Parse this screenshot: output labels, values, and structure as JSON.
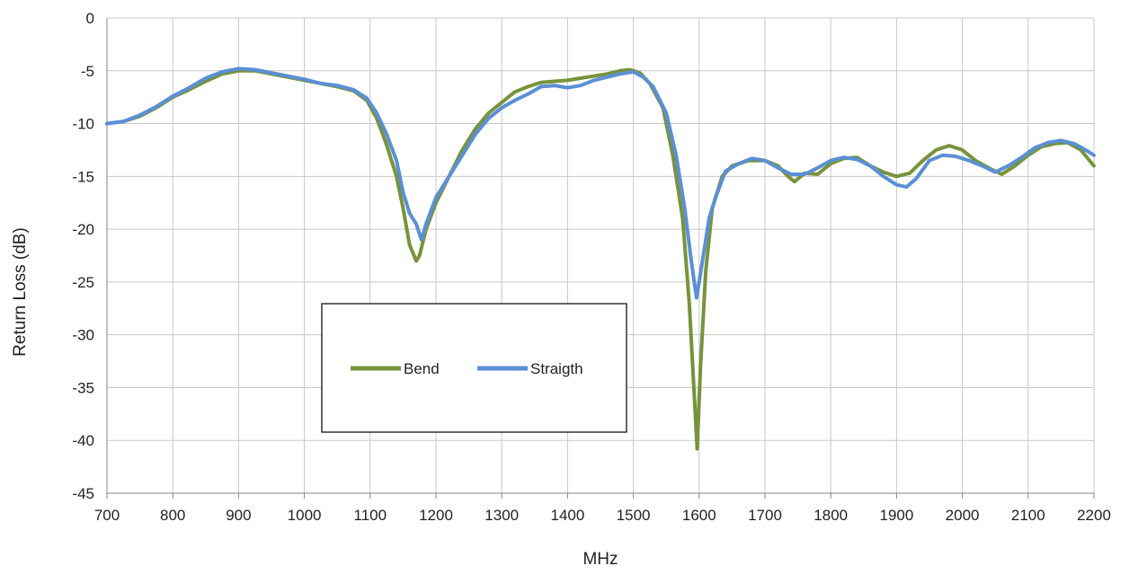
{
  "chart_data": {
    "type": "line",
    "title": "",
    "xlabel": "MHz",
    "ylabel": "Return Loss (dB)",
    "xlim": [
      700,
      2200
    ],
    "ylim": [
      -45,
      0
    ],
    "xticks": [
      700,
      800,
      900,
      1000,
      1100,
      1200,
      1300,
      1400,
      1500,
      1600,
      1700,
      1800,
      1900,
      2000,
      2100,
      2200
    ],
    "yticks": [
      0,
      -5,
      -10,
      -15,
      -20,
      -25,
      -30,
      -35,
      -40,
      -45
    ],
    "grid": true,
    "legend_position": "center-left",
    "series": [
      {
        "name": "Bend",
        "color": "#77933C",
        "points": [
          [
            700,
            -10
          ],
          [
            725,
            -9.8
          ],
          [
            750,
            -9.3
          ],
          [
            775,
            -8.5
          ],
          [
            800,
            -7.5
          ],
          [
            825,
            -6.8
          ],
          [
            850,
            -6
          ],
          [
            875,
            -5.3
          ],
          [
            900,
            -5
          ],
          [
            925,
            -5
          ],
          [
            950,
            -5.3
          ],
          [
            975,
            -5.6
          ],
          [
            1000,
            -5.9
          ],
          [
            1025,
            -6.2
          ],
          [
            1050,
            -6.5
          ],
          [
            1075,
            -6.9
          ],
          [
            1095,
            -7.8
          ],
          [
            1110,
            -9.5
          ],
          [
            1125,
            -12
          ],
          [
            1140,
            -15
          ],
          [
            1150,
            -18
          ],
          [
            1160,
            -21.5
          ],
          [
            1170,
            -23
          ],
          [
            1175,
            -22.5
          ],
          [
            1185,
            -20
          ],
          [
            1200,
            -17.5
          ],
          [
            1220,
            -15
          ],
          [
            1240,
            -12.5
          ],
          [
            1260,
            -10.5
          ],
          [
            1280,
            -9
          ],
          [
            1300,
            -8
          ],
          [
            1320,
            -7
          ],
          [
            1340,
            -6.5
          ],
          [
            1360,
            -6.1
          ],
          [
            1380,
            -6
          ],
          [
            1400,
            -5.9
          ],
          [
            1420,
            -5.7
          ],
          [
            1440,
            -5.5
          ],
          [
            1460,
            -5.3
          ],
          [
            1480,
            -5
          ],
          [
            1495,
            -4.9
          ],
          [
            1510,
            -5.2
          ],
          [
            1525,
            -6.2
          ],
          [
            1545,
            -8.5
          ],
          [
            1560,
            -13
          ],
          [
            1575,
            -19
          ],
          [
            1585,
            -27
          ],
          [
            1592,
            -35
          ],
          [
            1597,
            -40.8
          ],
          [
            1602,
            -33
          ],
          [
            1610,
            -24
          ],
          [
            1620,
            -18
          ],
          [
            1635,
            -15
          ],
          [
            1650,
            -14
          ],
          [
            1675,
            -13.5
          ],
          [
            1700,
            -13.5
          ],
          [
            1720,
            -14
          ],
          [
            1735,
            -15
          ],
          [
            1745,
            -15.5
          ],
          [
            1760,
            -14.7
          ],
          [
            1780,
            -14.8
          ],
          [
            1800,
            -13.8
          ],
          [
            1820,
            -13.3
          ],
          [
            1840,
            -13.2
          ],
          [
            1860,
            -14
          ],
          [
            1880,
            -14.6
          ],
          [
            1900,
            -15
          ],
          [
            1920,
            -14.7
          ],
          [
            1940,
            -13.5
          ],
          [
            1960,
            -12.5
          ],
          [
            1980,
            -12.1
          ],
          [
            2000,
            -12.5
          ],
          [
            2020,
            -13.5
          ],
          [
            2040,
            -14.2
          ],
          [
            2060,
            -14.8
          ],
          [
            2080,
            -14
          ],
          [
            2100,
            -13
          ],
          [
            2120,
            -12.2
          ],
          [
            2140,
            -11.9
          ],
          [
            2160,
            -11.8
          ],
          [
            2180,
            -12.5
          ],
          [
            2200,
            -14
          ]
        ]
      },
      {
        "name": "Straigth",
        "color": "#5B8FD6",
        "points": [
          [
            700,
            -10
          ],
          [
            725,
            -9.8
          ],
          [
            750,
            -9.2
          ],
          [
            775,
            -8.4
          ],
          [
            800,
            -7.4
          ],
          [
            825,
            -6.6
          ],
          [
            850,
            -5.7
          ],
          [
            875,
            -5.1
          ],
          [
            900,
            -4.8
          ],
          [
            925,
            -4.9
          ],
          [
            950,
            -5.2
          ],
          [
            975,
            -5.5
          ],
          [
            1000,
            -5.8
          ],
          [
            1025,
            -6.2
          ],
          [
            1050,
            -6.4
          ],
          [
            1075,
            -6.8
          ],
          [
            1095,
            -7.6
          ],
          [
            1110,
            -9
          ],
          [
            1125,
            -11
          ],
          [
            1140,
            -13.5
          ],
          [
            1150,
            -16.5
          ],
          [
            1160,
            -18.5
          ],
          [
            1170,
            -19.5
          ],
          [
            1178,
            -21
          ],
          [
            1185,
            -19.5
          ],
          [
            1200,
            -17
          ],
          [
            1220,
            -15
          ],
          [
            1240,
            -13
          ],
          [
            1260,
            -11
          ],
          [
            1280,
            -9.5
          ],
          [
            1300,
            -8.5
          ],
          [
            1320,
            -7.8
          ],
          [
            1340,
            -7.2
          ],
          [
            1360,
            -6.5
          ],
          [
            1380,
            -6.4
          ],
          [
            1400,
            -6.6
          ],
          [
            1420,
            -6.4
          ],
          [
            1440,
            -5.9
          ],
          [
            1460,
            -5.6
          ],
          [
            1480,
            -5.3
          ],
          [
            1500,
            -5.1
          ],
          [
            1515,
            -5.6
          ],
          [
            1530,
            -6.5
          ],
          [
            1550,
            -9
          ],
          [
            1565,
            -13
          ],
          [
            1578,
            -18
          ],
          [
            1588,
            -23
          ],
          [
            1596,
            -26.5
          ],
          [
            1605,
            -23
          ],
          [
            1615,
            -19
          ],
          [
            1625,
            -17
          ],
          [
            1640,
            -14.5
          ],
          [
            1660,
            -13.8
          ],
          [
            1680,
            -13.3
          ],
          [
            1700,
            -13.5
          ],
          [
            1720,
            -14.2
          ],
          [
            1740,
            -14.8
          ],
          [
            1760,
            -14.8
          ],
          [
            1780,
            -14.2
          ],
          [
            1800,
            -13.5
          ],
          [
            1820,
            -13.2
          ],
          [
            1840,
            -13.4
          ],
          [
            1860,
            -14
          ],
          [
            1880,
            -15
          ],
          [
            1900,
            -15.8
          ],
          [
            1915,
            -16
          ],
          [
            1930,
            -15.2
          ],
          [
            1950,
            -13.5
          ],
          [
            1970,
            -13
          ],
          [
            1990,
            -13.1
          ],
          [
            2010,
            -13.5
          ],
          [
            2030,
            -14
          ],
          [
            2050,
            -14.6
          ],
          [
            2070,
            -14
          ],
          [
            2090,
            -13.2
          ],
          [
            2110,
            -12.3
          ],
          [
            2130,
            -11.8
          ],
          [
            2150,
            -11.6
          ],
          [
            2170,
            -11.9
          ],
          [
            2190,
            -12.6
          ],
          [
            2200,
            -13
          ]
        ]
      }
    ]
  },
  "colors": {
    "grid": "#c8c8c8",
    "axis": "#868686",
    "legend_border": "#000000"
  }
}
